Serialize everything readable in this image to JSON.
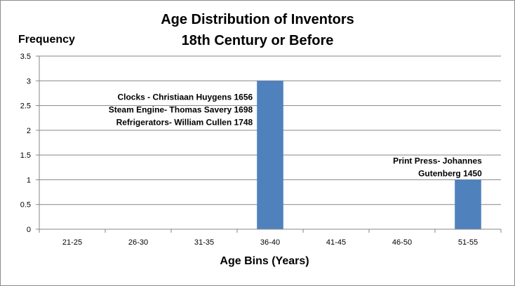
{
  "chart_data": {
    "type": "bar",
    "title": [
      "Age Distribution of Inventors",
      "18th Century or Before"
    ],
    "xlabel": "Age Bins (Years)",
    "ylabel": "Frequency",
    "categories": [
      "21-25",
      "26-30",
      "31-35",
      "36-40",
      "41-45",
      "46-50",
      "51-55"
    ],
    "values": [
      0,
      0,
      0,
      3,
      0,
      0,
      1
    ],
    "ylim": [
      0,
      3.5
    ],
    "yticks": [
      "0",
      "0.5",
      "1",
      "1.5",
      "2",
      "2.5",
      "3",
      "3.5"
    ],
    "grid": true,
    "legend": false,
    "bar_color": "#4f81bd",
    "annotations": [
      {
        "category": "36-40",
        "lines": [
          "Clocks - Christiaan Huygens 1656",
          "Steam Engine- Thomas Savery 1698",
          "Refrigerators- William Cullen 1748"
        ]
      },
      {
        "category": "51-55",
        "lines": [
          "Print Press- Johannes",
          "Gutenberg 1450"
        ]
      }
    ]
  }
}
